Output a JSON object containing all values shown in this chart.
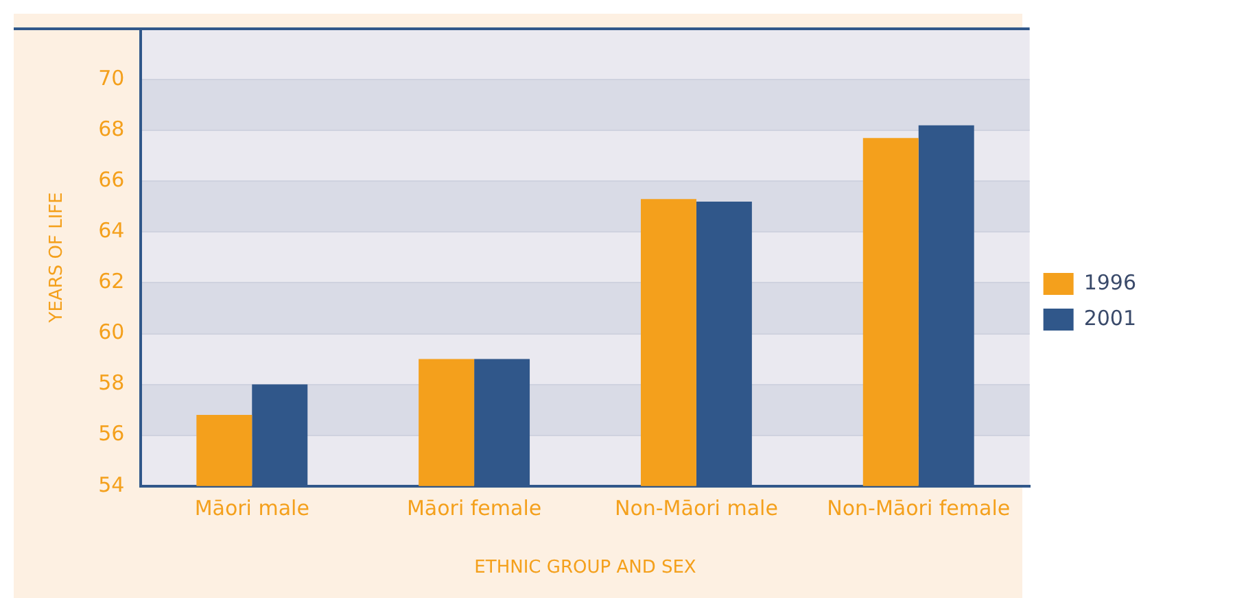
{
  "chart_data": {
    "type": "bar",
    "xlabel": "ETHNIC GROUP AND SEX",
    "ylabel": "YEARS OF LIFE",
    "categories": [
      "Māori male",
      "Māori female",
      "Non-Māori male",
      "Non-Māori female"
    ],
    "series": [
      {
        "name": "1996",
        "color": "#f4a01c",
        "values": [
          56.8,
          59.0,
          65.3,
          67.7
        ]
      },
      {
        "name": "2001",
        "color": "#30578a",
        "values": [
          58.0,
          59.0,
          65.2,
          68.2
        ]
      }
    ],
    "ylim": [
      54,
      72
    ],
    "yticks": [
      54,
      56,
      58,
      60,
      62,
      64,
      66,
      68,
      70
    ],
    "grid": "y",
    "legend": "right"
  }
}
